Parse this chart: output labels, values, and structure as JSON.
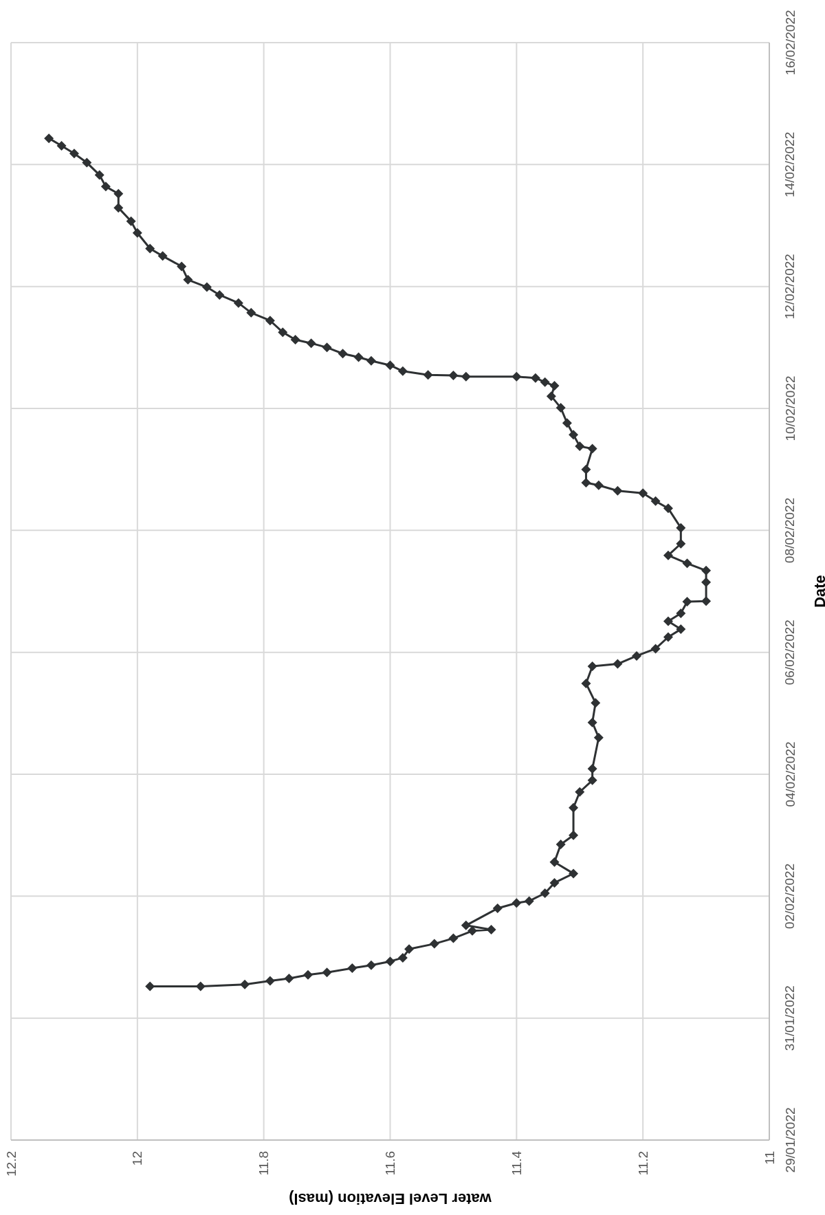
{
  "chart_data": {
    "type": "line",
    "orientation": "horizontal",
    "ylabel": "Date",
    "xlabel": "water Level Elevation (masl)",
    "color": "#2e3133",
    "marker": "diamond",
    "line_style": "solid",
    "grid": true,
    "ylim": [
      "2022-01-29",
      "2022-02-16"
    ],
    "yticks": [
      {
        "value": "2022-01-29",
        "label": "29/01/2022"
      },
      {
        "value": "2022-01-31",
        "label": "31/01/2022"
      },
      {
        "value": "2022-02-02",
        "label": "02/02/2022"
      },
      {
        "value": "2022-02-04",
        "label": "04/02/2022"
      },
      {
        "value": "2022-02-06",
        "label": "06/02/2022"
      },
      {
        "value": "2022-02-08",
        "label": "08/02/2022"
      },
      {
        "value": "2022-02-10",
        "label": "10/02/2022"
      },
      {
        "value": "2022-02-12",
        "label": "12/02/2022"
      },
      {
        "value": "2022-02-14",
        "label": "14/02/2022"
      },
      {
        "value": "2022-02-16",
        "label": "16/02/2022"
      }
    ],
    "xlim": [
      12.2,
      11
    ],
    "xticks": [
      12.2,
      12,
      11.8,
      11.6,
      11.4,
      11.2,
      11
    ],
    "x": [
      "2022-01-31T12:30",
      "2022-01-31T12:30",
      "2022-01-31T13:15",
      "2022-01-31T14:40",
      "2022-01-31T15:36",
      "2022-01-31T17:02",
      "2022-01-31T18:00",
      "2022-01-31T19:40",
      "2022-01-31T20:50",
      "2022-01-31T22:20",
      "2022-01-31T23:45",
      "2022-02-01T03:10",
      "2022-02-01T05:15",
      "2022-02-01T07:25",
      "2022-02-01T10:20",
      "2022-02-01T10:50",
      "2022-02-01T12:30",
      "2022-02-01T19:12",
      "2022-02-01T21:20",
      "2022-02-01T22:05",
      "2022-02-02T01:10",
      "2022-02-02T05:15",
      "2022-02-02T08:55",
      "2022-02-02T13:25",
      "2022-02-02T20:24",
      "2022-02-03T00:00",
      "2022-02-03T10:48",
      "2022-02-03T17:02",
      "2022-02-03T21:36",
      "2022-02-04T02:10",
      "2022-02-04T14:24",
      "2022-02-04T20:24",
      "2022-02-05T04:05",
      "2022-02-05T11:45",
      "2022-02-05T18:30",
      "2022-02-05T19:25",
      "2022-02-05T22:35",
      "2022-02-06T01:25",
      "2022-02-06T06:00",
      "2022-02-06T09:05",
      "2022-02-06T12:15",
      "2022-02-06T15:20",
      "2022-02-06T19:55",
      "2022-02-06T20:10",
      "2022-02-07T03:35",
      "2022-02-07T08:10",
      "2022-02-07T11:00",
      "2022-02-07T14:10",
      "2022-02-07T18:45",
      "2022-02-08T01:00",
      "2022-02-08T08:40",
      "2022-02-08T11:30",
      "2022-02-08T14:40",
      "2022-02-08T15:36",
      "2022-02-08T17:45",
      "2022-02-08T18:45",
      "2022-02-09T00:00",
      "2022-02-09T08:10",
      "2022-02-09T09:05",
      "2022-02-09T13:40",
      "2022-02-09T18:15",
      "2022-02-10T00:15",
      "2022-02-10T04:50",
      "2022-02-10T08:55",
      "2022-02-10T10:20",
      "2022-02-10T12:00",
      "2022-02-10T12:30",
      "2022-02-10T12:30",
      "2022-02-10T13:00",
      "2022-02-10T13:10",
      "2022-02-10T14:40",
      "2022-02-10T17:00",
      "2022-02-10T18:45",
      "2022-02-10T20:10",
      "2022-02-10T21:35",
      "2022-02-11T00:00",
      "2022-02-11T01:40",
      "2022-02-11T03:05",
      "2022-02-11T06:00",
      "2022-02-11T10:35",
      "2022-02-11T13:40",
      "2022-02-11T17:30",
      "2022-02-11T20:40",
      "2022-02-11T23:45",
      "2022-02-12T02:40",
      "2022-02-12T07:55",
      "2022-02-12T12:00",
      "2022-02-12T14:55",
      "2022-02-12T21:05",
      "2022-02-13T01:40",
      "2022-02-13T07:00",
      "2022-02-13T12:30",
      "2022-02-13T15:20",
      "2022-02-13T19:55",
      "2022-02-14T00:45",
      "2022-02-14T04:20",
      "2022-02-14T07:25",
      "2022-02-14T10:20"
    ],
    "values": [
      11.98,
      11.9,
      11.83,
      11.79,
      11.76,
      11.73,
      11.7,
      11.66,
      11.63,
      11.6,
      11.58,
      11.57,
      11.53,
      11.5,
      11.47,
      11.44,
      11.48,
      11.43,
      11.4,
      11.38,
      11.355,
      11.34,
      11.31,
      11.34,
      11.33,
      11.31,
      11.31,
      11.3,
      11.28,
      11.28,
      11.27,
      11.28,
      11.275,
      11.29,
      11.28,
      11.24,
      11.21,
      11.18,
      11.16,
      11.14,
      11.16,
      11.14,
      11.13,
      11.1,
      11.1,
      11.1,
      11.13,
      11.16,
      11.14,
      11.14,
      11.16,
      11.18,
      11.2,
      11.24,
      11.27,
      11.29,
      11.29,
      11.28,
      11.3,
      11.31,
      11.32,
      11.33,
      11.345,
      11.34,
      11.355,
      11.37,
      11.4,
      11.48,
      11.5,
      11.54,
      11.58,
      11.6,
      11.63,
      11.65,
      11.675,
      11.7,
      11.725,
      11.75,
      11.77,
      11.79,
      11.82,
      11.84,
      11.87,
      11.89,
      11.92,
      11.93,
      11.96,
      11.98,
      12,
      12.01,
      12.03,
      12.03,
      12.05,
      12.06,
      12.08,
      12.1,
      12.12,
      12.14
    ]
  }
}
